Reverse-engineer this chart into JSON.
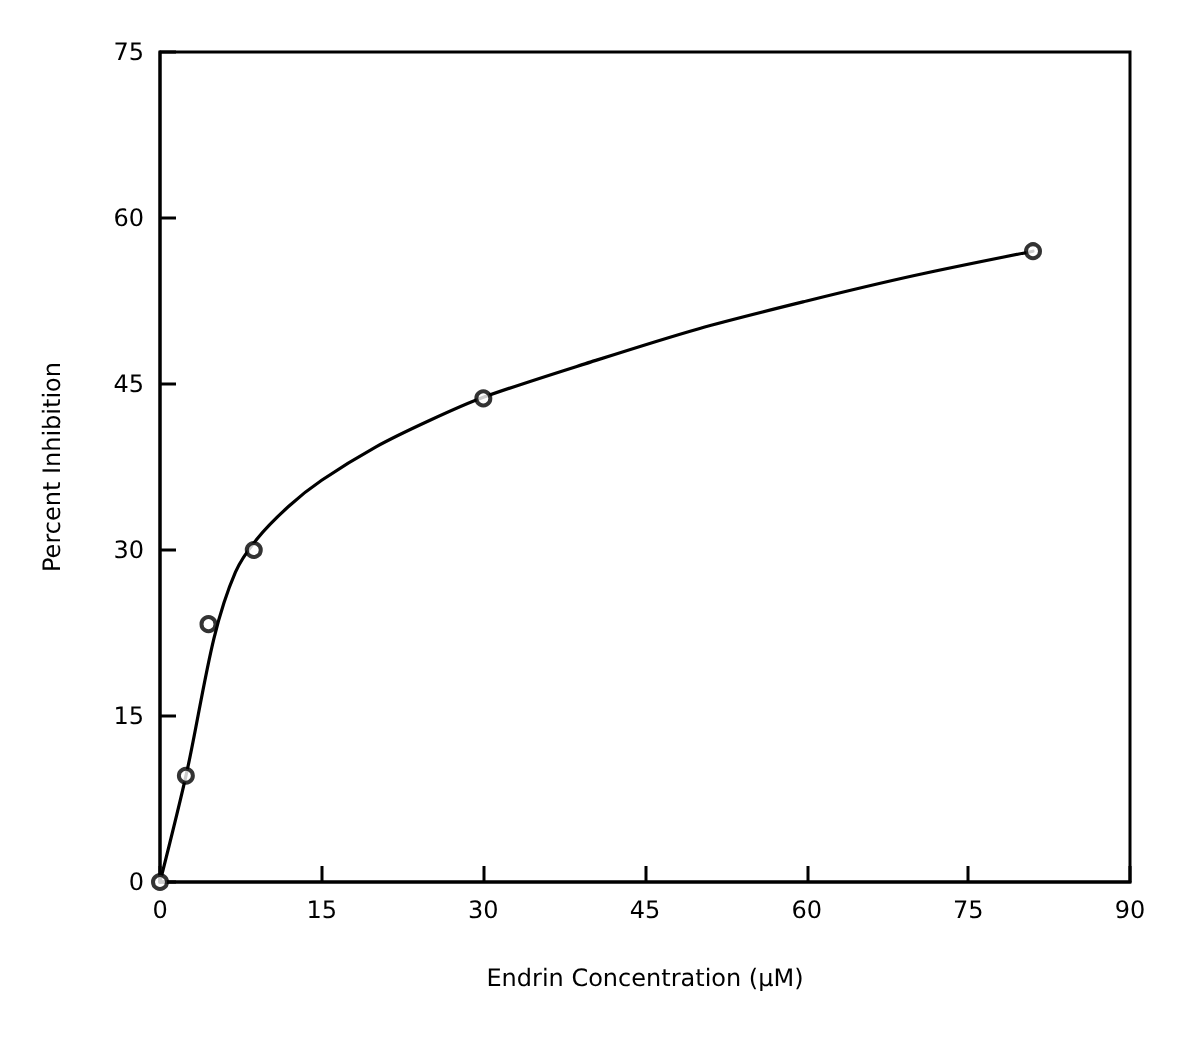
{
  "chart_data": {
    "type": "scatter",
    "xlabel": "Endrin Concentration (μM)",
    "ylabel": "Percent Inhibition",
    "xlim": [
      0,
      90
    ],
    "xticks": [
      0,
      15,
      30,
      45,
      60,
      75,
      90
    ],
    "ylim": [
      0,
      75
    ],
    "yticks": [
      0,
      15,
      30,
      45,
      60,
      75
    ],
    "grid": false,
    "series": [
      {
        "marker": "circle",
        "color": "#000000",
        "x": [
          0,
          2.4,
          4.5,
          8.7,
          30,
          81
        ],
        "values": [
          0,
          9.6,
          23.3,
          30,
          43.7,
          57
        ]
      },
      {
        "type": "line",
        "marker": "none",
        "color": "#000000",
        "line_style": "solid",
        "x": [
          0,
          2.5,
          5,
          7,
          9,
          12,
          15,
          20,
          25,
          30,
          40,
          50,
          60,
          70,
          81
        ],
        "values": [
          0,
          10,
          22,
          28,
          31,
          34,
          36.3,
          39.3,
          41.7,
          43.8,
          47,
          50,
          52.5,
          54.8,
          57
        ]
      }
    ]
  }
}
